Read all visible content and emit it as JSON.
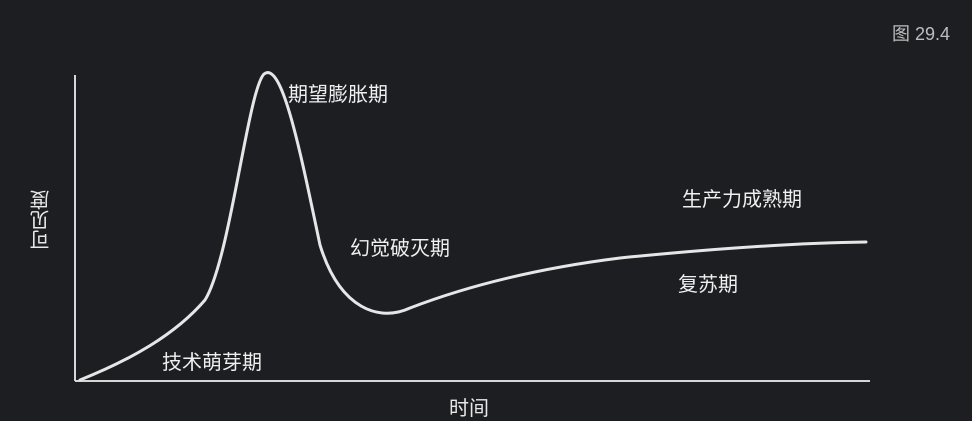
{
  "figure_number": "图 29.4",
  "axes": {
    "x_title": "时间",
    "y_title": "可见度"
  },
  "phases": [
    {
      "id": "trigger",
      "label": "技术萌芽期"
    },
    {
      "id": "peak",
      "label": "期望膨胀期"
    },
    {
      "id": "trough",
      "label": "幻觉破灭期"
    },
    {
      "id": "slope",
      "label": "复苏期"
    },
    {
      "id": "plateau",
      "label": "生产力成熟期"
    }
  ],
  "colors": {
    "background": "#1c1e22",
    "curve": "#e6e6e6",
    "axis": "#d6d6d6",
    "text": "#f0f0f0"
  }
}
